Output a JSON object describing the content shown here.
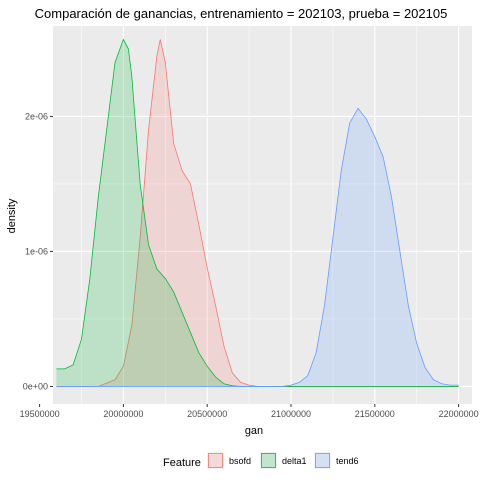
{
  "chart_data": {
    "type": "area",
    "title": "Comparación de ganancias, entrenamiento = 202103, prueba = 202105",
    "xlabel": "gan",
    "ylabel": "density",
    "xlim": [
      19580000,
      22080000
    ],
    "ylim": [
      -1.3e-07,
      2.67e-06
    ],
    "x_ticks": [
      19500000,
      20000000,
      20500000,
      21000000,
      21500000,
      22000000
    ],
    "x_tick_labels": [
      "19500000",
      "20000000",
      "20500000",
      "21000000",
      "21500000",
      "22000000"
    ],
    "y_ticks": [
      0,
      1e-06,
      2e-06
    ],
    "y_tick_labels": [
      "0e+00",
      "1e-06",
      "2e-06"
    ],
    "grid": true,
    "background": "#ebebeb",
    "legend": {
      "title": "Feature",
      "position": "bottom"
    },
    "series": [
      {
        "name": "bsofd",
        "line_color": "#f8766d",
        "fill_color": "#f8766d",
        "x": [
          19600000,
          19850000,
          19950000,
          20000000,
          20050000,
          20100000,
          20150000,
          20200000,
          20220000,
          20250000,
          20300000,
          20350000,
          20400000,
          20450000,
          20500000,
          20550000,
          20600000,
          20650000,
          20700000,
          20750000,
          20800000,
          22000000
        ],
        "y": [
          0,
          0,
          5e-08,
          1.5e-07,
          4.5e-07,
          1.1e-06,
          1.9e-06,
          2.45e-06,
          2.57e-06,
          2.4e-06,
          1.8e-06,
          1.6e-06,
          1.5e-06,
          1.2e-06,
          8.8e-07,
          6e-07,
          3e-07,
          1e-07,
          3e-08,
          1e-08,
          0,
          0
        ]
      },
      {
        "name": "delta1",
        "line_color": "#00ba38",
        "fill_color": "#00ba38",
        "x": [
          19600000,
          19650000,
          19700000,
          19750000,
          19800000,
          19850000,
          19900000,
          19950000,
          20000000,
          20030000,
          20050000,
          20100000,
          20150000,
          20200000,
          20250000,
          20300000,
          20350000,
          20400000,
          20450000,
          20500000,
          20550000,
          20600000,
          20650000,
          20700000,
          22000000
        ],
        "y": [
          1.3e-07,
          1.3e-07,
          1.6e-07,
          3.5e-07,
          8e-07,
          1.4e-06,
          1.9e-06,
          2.4e-06,
          2.57e-06,
          2.5e-06,
          2.3e-06,
          1.5e-06,
          1.05e-06,
          8.7e-07,
          8e-07,
          7e-07,
          5.5e-07,
          4e-07,
          2.5e-07,
          1.5e-07,
          7e-08,
          2e-08,
          5e-09,
          0,
          0
        ]
      },
      {
        "name": "tend6",
        "line_color": "#619cff",
        "fill_color": "#619cff",
        "x": [
          19600000,
          20800000,
          20950000,
          21000000,
          21050000,
          21100000,
          21150000,
          21200000,
          21250000,
          21300000,
          21350000,
          21400000,
          21450000,
          21500000,
          21550000,
          21600000,
          21650000,
          21700000,
          21750000,
          21800000,
          21850000,
          21900000,
          21950000,
          22000000
        ],
        "y": [
          0,
          0,
          0,
          1e-08,
          3e-08,
          8e-08,
          2.5e-07,
          6e-07,
          1.1e-06,
          1.6e-06,
          1.95e-06,
          2.06e-06,
          1.98e-06,
          1.85e-06,
          1.7e-06,
          1.4e-06,
          1e-06,
          6e-07,
          3.2e-07,
          1.4e-07,
          5e-08,
          2e-08,
          1e-08,
          1e-08
        ]
      }
    ]
  }
}
